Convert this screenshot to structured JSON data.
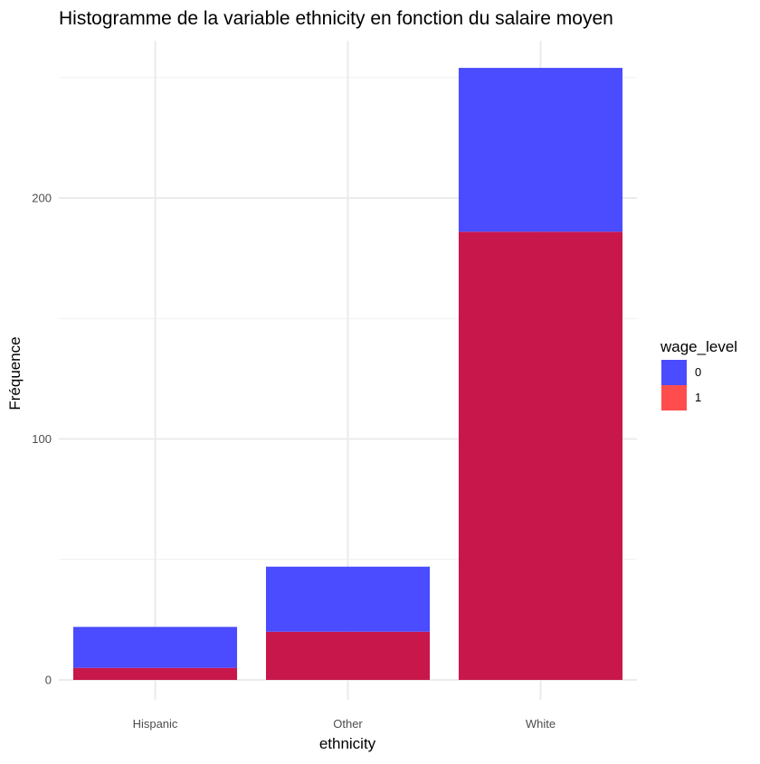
{
  "chart_data": {
    "type": "bar",
    "stacked": true,
    "title": "Histogramme de la variable ethnicity en fonction du salaire moyen",
    "xlabel": "ethnicity",
    "ylabel": "Fréquence",
    "categories": [
      "Hispanic",
      "Other",
      "White"
    ],
    "series": [
      {
        "name": "0",
        "values": [
          17,
          27,
          68
        ],
        "color": "#4B4BFF"
      },
      {
        "name": "1",
        "values": [
          5,
          20,
          186
        ],
        "color": "#C8174B"
      }
    ],
    "ylim": [
      0,
      254
    ],
    "yticks": [
      0,
      100,
      200
    ],
    "grid": true,
    "legend": {
      "title": "wage_level",
      "position": "right",
      "entries": [
        {
          "label": "0",
          "color": "#4B4BFF"
        },
        {
          "label": "1",
          "color": "#FF4D4D"
        }
      ]
    }
  }
}
